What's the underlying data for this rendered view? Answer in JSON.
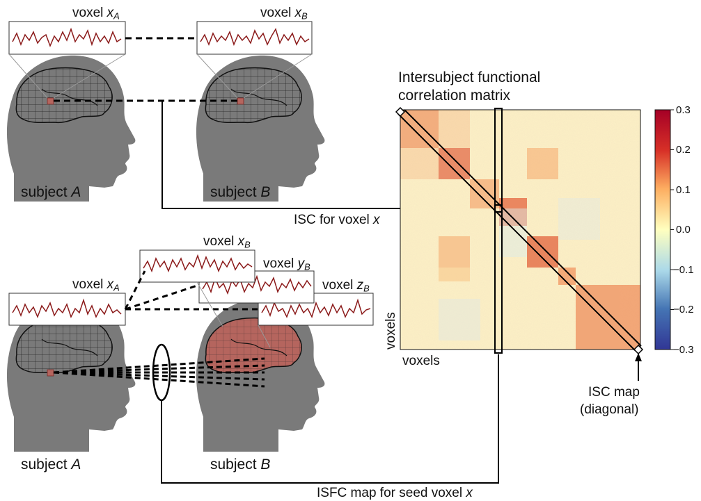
{
  "matrix": {
    "title_line1": "Intersubject functional",
    "title_line2": "correlation matrix",
    "x_axis_label": "voxels",
    "y_axis_label": "voxels"
  },
  "colorbar": {
    "ticks": [
      "0.3",
      "0.2",
      "0.1",
      "0.0",
      "−0.1",
      "−0.2",
      "−0.3"
    ],
    "colors": {
      "high": "#b2182b",
      "mid": "#ffffbf",
      "low": "#2c3a9b"
    }
  },
  "top_panel": {
    "voxel_a": {
      "word": "voxel",
      "var": "x",
      "sub": "A"
    },
    "voxel_b": {
      "word": "voxel",
      "var": "x",
      "sub": "B"
    },
    "subject_a": {
      "word": "subject",
      "var": "A"
    },
    "subject_b": {
      "word": "subject",
      "var": "B"
    },
    "isc_label": {
      "text": "ISC for voxel",
      "var": "x"
    }
  },
  "bottom_panel": {
    "voxel_a": {
      "word": "voxel",
      "var": "x",
      "sub": "A"
    },
    "voxel_xb": {
      "word": "voxel",
      "var": "x",
      "sub": "B"
    },
    "voxel_yb": {
      "word": "voxel",
      "var": "y",
      "sub": "B"
    },
    "voxel_zb": {
      "word": "voxel",
      "var": "z",
      "sub": "B"
    },
    "subject_a": {
      "word": "subject",
      "var": "A"
    },
    "subject_b": {
      "word": "subject",
      "var": "B"
    },
    "isfc_label": {
      "text": "ISFC map for seed voxel",
      "var": "x"
    }
  },
  "isc_map": {
    "line1": "ISC map",
    "line2": "(diagonal)"
  },
  "palette": {
    "head": "#7a7a7a",
    "trace": "#8b1a1a",
    "voxel": "#b5655e",
    "brain_fill": "#b5655e"
  }
}
